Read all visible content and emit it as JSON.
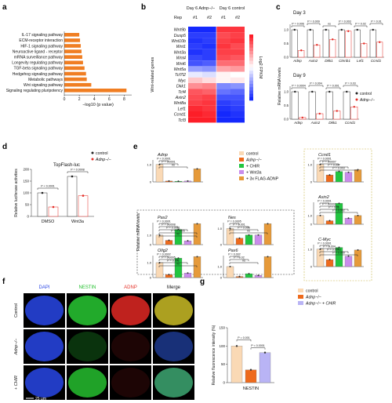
{
  "panels": {
    "a": "a",
    "b": "b",
    "c": "c",
    "d": "d",
    "e": "e",
    "f": "f",
    "g": "g"
  },
  "a": {
    "xlabel": "−log10 (p value)",
    "ticks": [
      0,
      2,
      4,
      6,
      8
    ],
    "color": "#F07E22",
    "chart_data": {
      "type": "bar",
      "categories": [
        "IL-17 signaling pathway",
        "ECM-receptor interaction",
        "HIF-1 signaling pathway",
        "Neuroactive ligand - receptor",
        "mRNA surveillance pathway",
        "Longevity regulating pathway",
        "TGF-beta signaling pathway",
        "Hedgehog signaling pathway",
        "Metabolic pathways",
        "Wnt signaling pathway",
        "Signaling regulating pluripotency"
      ],
      "values": [
        2.0,
        2.1,
        2.2,
        2.3,
        2.4,
        2.5,
        2.7,
        2.9,
        3.0,
        3.6,
        8.3
      ],
      "xlim": [
        0,
        9
      ]
    }
  },
  "b": {
    "title_left": "Day 6 Adnp−/−",
    "title_right": "Day 6 control",
    "rep_label": "Rep",
    "reps": [
      "#1",
      "#2",
      "#1",
      "#2"
    ],
    "ylabel": "Wnt-related genes",
    "colorbar_label": "Log2 FPKM",
    "genes": [
      "Wnt9b",
      "Dusp5",
      "Wnt10b",
      "Wnt1",
      "Wnt3a",
      "Wnt4",
      "Wnt6",
      "Wnt5a",
      "Tcf7l2",
      "Myc",
      "Dkk1",
      "Tcf4",
      "Axin2",
      "Wnt8a",
      "Lef1",
      "Ccnd1",
      "Tcf3"
    ],
    "chart_data": {
      "type": "heatmap",
      "values": [
        [
          -2.0,
          -2.0,
          1.8,
          1.8
        ],
        [
          -1.8,
          -1.8,
          1.6,
          1.7
        ],
        [
          -1.9,
          -1.8,
          1.7,
          1.8
        ],
        [
          -1.8,
          -1.9,
          1.8,
          1.6
        ],
        [
          -1.9,
          -1.8,
          1.7,
          1.7
        ],
        [
          -1.7,
          -1.8,
          1.6,
          1.5
        ],
        [
          -1.6,
          -1.5,
          1.3,
          1.3
        ],
        [
          -0.9,
          -1.0,
          0.8,
          0.9
        ],
        [
          -0.2,
          -0.3,
          0.1,
          0.0
        ],
        [
          0.5,
          0.3,
          0.1,
          0.2
        ],
        [
          1.0,
          1.1,
          -1.1,
          -1.0
        ],
        [
          1.5,
          1.4,
          -1.3,
          -1.4
        ],
        [
          1.6,
          1.7,
          -1.6,
          -1.6
        ],
        [
          1.7,
          1.8,
          -1.8,
          -1.7
        ],
        [
          1.9,
          1.8,
          -1.9,
          -1.8
        ],
        [
          2.0,
          1.9,
          -2.0,
          -1.9
        ],
        [
          2.0,
          2.0,
          -2.0,
          -2.0
        ]
      ]
    }
  },
  "c": {
    "day3": "Day 3",
    "day9": "Day 9",
    "ylabel": "Relative mRNA levels",
    "legend": [
      "control",
      "Adnp−/−"
    ],
    "pvals_day3": [
      "P = 0.006",
      "P = 0.009",
      "ns",
      "P = 0.003",
      "P = 0.02",
      "P = 0.01"
    ],
    "pvals_day9": [
      "P = 0.0004",
      "P = 0.004",
      "P = 0.001",
      "P = 0.03"
    ],
    "chart_data": [
      {
        "type": "bar",
        "title": "Day 3",
        "categories": [
          "Adnp",
          "Axin2",
          "Dkk1",
          "Ctnnb1",
          "Lef1",
          "Ccnd1"
        ],
        "series": [
          {
            "name": "control",
            "values": [
              1.0,
              1.0,
              1.0,
              1.0,
              1.0,
              1.0
            ]
          },
          {
            "name": "Adnp−/−",
            "values": [
              0.25,
              0.45,
              0.65,
              0.95,
              0.5,
              0.55
            ]
          }
        ],
        "ylim": [
          0,
          1.2
        ]
      },
      {
        "type": "bar",
        "title": "Day 9",
        "categories": [
          "Adnp",
          "Axin2",
          "Dkk1",
          "Ccnd1"
        ],
        "series": [
          {
            "name": "control",
            "values": [
              1.0,
              1.0,
              1.0,
              1.0
            ]
          },
          {
            "name": "Adnp−/−",
            "values": [
              0.06,
              0.2,
              0.3,
              0.45
            ]
          }
        ],
        "ylim": [
          0,
          1.2
        ]
      }
    ]
  },
  "d": {
    "title": "TopFlash-luc",
    "ylabel": "Relative luciferase activities",
    "legend": [
      "control",
      "Adnp−/−"
    ],
    "pvals": [
      "P < 0.0001",
      "P = 0.0008"
    ],
    "ticks": [
      0,
      50,
      100,
      150,
      200
    ],
    "chart_data": {
      "type": "bar",
      "categories": [
        "DMSO",
        "Wnt3a"
      ],
      "series": [
        {
          "name": "control",
          "values": [
            100,
            170
          ]
        },
        {
          "name": "Adnp−/−",
          "values": [
            40,
            88
          ]
        }
      ],
      "ylim": [
        0,
        200
      ]
    }
  },
  "e": {
    "ylabel": "Relative mRNA levels",
    "legend": [
      "control",
      "Adnp−/−",
      "+ CHIR",
      "+ Wnt3a",
      "+ 3x FLAG-ADNP"
    ],
    "colors": [
      "#FAD9B5",
      "#EE6A1C",
      "#22C540",
      "#C98CEB",
      "#E69A3A"
    ],
    "chart_data": [
      {
        "type": "bar",
        "title": "Adnp",
        "categories": [
          "control",
          "Adnp−/−",
          "+ CHIR",
          "+ Wnt3a",
          "+ 3x FLAG-ADNP"
        ],
        "values": [
          1.0,
          0.05,
          0.04,
          0.05,
          0.75
        ],
        "pvals": [
          "P < 0.0001",
          "P = 0.0001",
          "ns"
        ]
      },
      {
        "type": "bar",
        "title": "Pax2",
        "categories": [
          "control",
          "Adnp−/−",
          "+ CHIR",
          "+ Wnt3a",
          "+ 3x FLAG-ADNP"
        ],
        "values": [
          1.0,
          0.45,
          1.6,
          0.4,
          2.2
        ],
        "pvals": [
          "P = 0.0001",
          "P = 0.0008",
          "P = 0.0001",
          "P = 0.0005",
          "ns"
        ]
      },
      {
        "type": "bar",
        "title": "Nes",
        "categories": [
          "control",
          "Adnp−/−",
          "+ CHIR",
          "+ Wnt3a",
          "+ 3x FLAG-ADNP"
        ],
        "values": [
          1.0,
          0.4,
          0.6,
          0.6,
          1.3
        ],
        "pvals": [
          "P = 0.0005",
          "P = 0.001",
          "P = 0.005",
          "ns"
        ]
      },
      {
        "type": "bar",
        "title": "Olig2",
        "categories": [
          "control",
          "Adnp−/−",
          "+ CHIR",
          "+ Wnt3a",
          "+ 3x FLAG-ADNP"
        ],
        "values": [
          1.0,
          0.2,
          1.3,
          0.3,
          1.4
        ],
        "pvals": [
          "P = 0.0002",
          "P = 0.0005",
          "P = 0.002",
          "ns"
        ]
      },
      {
        "type": "bar",
        "title": "Pax6",
        "categories": [
          "control",
          "Adnp−/−",
          "+ CHIR",
          "+ Wnt3a",
          "+ 3x FLAG-ADNP"
        ],
        "values": [
          1.0,
          0.1,
          0.35,
          0.2,
          1.9
        ],
        "pvals": [
          "P = 0.002",
          "P = 0.02",
          "ns"
        ]
      },
      {
        "type": "bar",
        "title": "Ccnd1",
        "categories": [
          "control",
          "Adnp−/−",
          "+ CHIR",
          "+ Wnt3a",
          "+ 3x FLAG-ADNP"
        ],
        "values": [
          1.0,
          0.4,
          0.6,
          0.55,
          0.7
        ],
        "pvals": [
          "P = 0.0001",
          "P = 0.0007",
          "P = 0.007",
          "P = 0.003"
        ]
      },
      {
        "type": "bar",
        "title": "Axin2",
        "categories": [
          "control",
          "Adnp−/−",
          "+ CHIR",
          "+ Wnt3a",
          "+ 3x FLAG-ADNP"
        ],
        "values": [
          1.0,
          0.4,
          2.4,
          0.7,
          1.0
        ],
        "pvals": [
          "P = 0.0001",
          "P = 0.0001",
          "P = 0.01",
          "P = 0.002"
        ]
      },
      {
        "type": "bar",
        "title": "C-Myc",
        "categories": [
          "control",
          "Adnp−/−",
          "+ CHIR",
          "+ Wnt3a",
          "+ 3x FLAG-ADNP"
        ],
        "values": [
          1.0,
          0.4,
          1.1,
          0.6,
          0.95
        ],
        "pvals": [
          "P = 0.0001",
          "P = 0.004",
          "P = 0.0003",
          "P = 0.009"
        ]
      }
    ]
  },
  "f": {
    "cols": [
      "DAPI",
      "NESTIN",
      "ADNP",
      "Merge"
    ],
    "col_colors": [
      "#2D48E5",
      "#1FBF2A",
      "#E5332A",
      "#111111"
    ],
    "rows": [
      "Control",
      "Adnp−/−",
      "+ CHIR"
    ],
    "scalebar": "25 μm"
  },
  "g": {
    "ylabel": "Relative fluorescence intensity (%)",
    "legend": [
      "control",
      "Adnp−/−",
      "Adnp−/− + CHIR"
    ],
    "colors": [
      "#FAD9B5",
      "#EE6A1C",
      "#B9B4F5"
    ],
    "pvals": [
      "P = 0.001",
      "P < 0.0001"
    ],
    "ticks": [
      0,
      50,
      100,
      150
    ],
    "chart_data": {
      "type": "bar",
      "categories": [
        "control",
        "Adnp−/−",
        "Adnp−/− + CHIR"
      ],
      "xlabel": "NESTIN",
      "values": [
        100,
        35,
        82
      ],
      "ylim": [
        0,
        150
      ]
    }
  }
}
